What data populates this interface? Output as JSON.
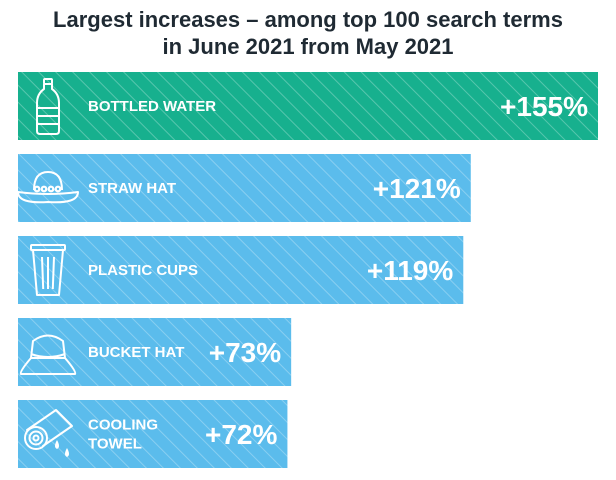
{
  "title_lines": [
    "Largest increases – among top 100 search terms",
    "in June 2021 from May 2021"
  ],
  "chart_data": {
    "type": "bar",
    "orientation": "horizontal",
    "title": "Largest increases – among top 100 search terms in June 2021 from May 2021",
    "categories": [
      "BOTTLED WATER",
      "STRAW HAT",
      "PLASTIC CUPS",
      "BUCKET HAT",
      "COOLING TOWEL"
    ],
    "category_lines": [
      [
        "BOTTLED WATER"
      ],
      [
        "STRAW HAT"
      ],
      [
        "PLASTIC CUPS"
      ],
      [
        "BUCKET HAT"
      ],
      [
        "COOLING",
        "TOWEL"
      ]
    ],
    "values": [
      155,
      121,
      119,
      73,
      72
    ],
    "value_labels": [
      "+155%",
      "+121%",
      "+119%",
      "+73%",
      "+72%"
    ],
    "icons": [
      "bottle-icon",
      "straw-hat-icon",
      "plastic-cup-icon",
      "bucket-hat-icon",
      "towel-icon"
    ],
    "colors": [
      "#17b08e",
      "#5bbcec",
      "#5bbcec",
      "#5bbcec",
      "#5bbcec"
    ],
    "xlim": [
      0,
      155
    ],
    "grid": false,
    "legend": "none"
  }
}
